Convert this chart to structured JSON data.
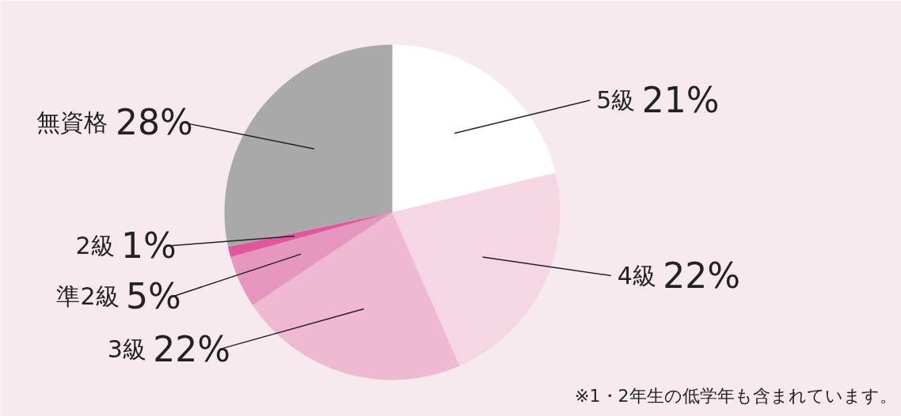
{
  "chart_data": {
    "type": "pie",
    "categories": [
      "5級",
      "4級",
      "3級",
      "準2級",
      "2級",
      "無資格"
    ],
    "values": [
      21,
      22,
      22,
      5,
      1,
      28
    ],
    "colors": [
      "#ffffff",
      "#f5d6e4",
      "#eeb9d1",
      "#e697bd",
      "#e0589b",
      "#a8a9a8"
    ],
    "value_labels": [
      "21%",
      "22%",
      "22%",
      "5%",
      "1%",
      "28%"
    ],
    "annotations": [
      "※1・2年生の低学年も含まれています。"
    ]
  }
}
